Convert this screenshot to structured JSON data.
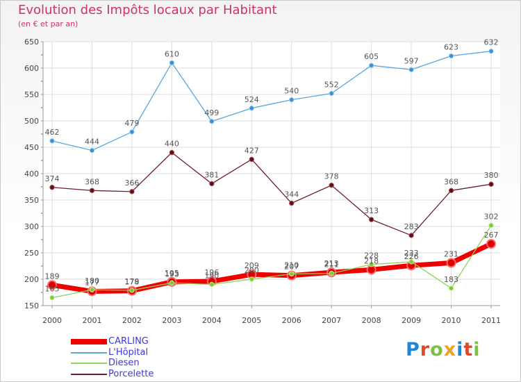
{
  "title": "Evolution des Impôts locaux par Habitant",
  "subtitle": "(en € et par an)",
  "logo": {
    "text": "Proxiti",
    "letters": [
      {
        "char": "P",
        "color": "#1e88d8"
      },
      {
        "char": "r",
        "color": "#e0492f"
      },
      {
        "char": "o",
        "color": "#7cc242"
      },
      {
        "char": "x",
        "color": "#f0a020"
      },
      {
        "char": "i",
        "color": "#1e88d8"
      },
      {
        "char": "t",
        "color": "#e0492f"
      },
      {
        "char": "i",
        "color": "#7cc242"
      }
    ]
  },
  "chart_data": {
    "type": "line",
    "title": "Evolution des Impôts locaux par Habitant",
    "subtitle": "(en € et par an)",
    "x": [
      "2000",
      "2001",
      "2002",
      "2003",
      "2004",
      "2005",
      "2006",
      "2007",
      "2008",
      "2009",
      "2010",
      "2011"
    ],
    "ylim": [
      150,
      650
    ],
    "yticks": [
      150,
      200,
      250,
      300,
      350,
      400,
      450,
      500,
      550,
      600,
      650
    ],
    "grid": true,
    "legend_position": "bottom-left",
    "series": [
      {
        "name": "CARLING",
        "color": "#ee0000",
        "values": [
          189,
          177,
          178,
          195,
          196,
          209,
          207,
          213,
          218,
          226,
          231,
          267
        ],
        "labels": [
          "189",
          "177",
          "178",
          "195",
          "196",
          "209",
          "207",
          "213",
          "218",
          "226",
          "231",
          "267"
        ]
      },
      {
        "name": "L'Hôpital",
        "color": "#5aa6d8",
        "values": [
          462,
          444,
          479,
          610,
          499,
          524,
          540,
          552,
          605,
          597,
          623,
          632
        ],
        "labels": [
          "462",
          "444",
          "479",
          "610",
          "499",
          "524",
          "540",
          "552",
          "605",
          "597",
          "623",
          "632"
        ]
      },
      {
        "name": "Diesen",
        "color": "#8fd35a",
        "values": [
          165,
          180,
          179,
          193,
          190,
          200,
          210,
          211,
          228,
          233,
          183,
          302
        ],
        "labels": [
          "165",
          "180",
          "179",
          "193",
          "190",
          "200",
          "210",
          "211",
          "228",
          "233",
          "183",
          "302"
        ]
      },
      {
        "name": "Porcelette",
        "color": "#6b1f28",
        "values": [
          374,
          368,
          366,
          440,
          381,
          427,
          344,
          378,
          313,
          283,
          368,
          380
        ],
        "labels": [
          "374",
          "368",
          "366",
          "440",
          "381",
          "427",
          "344",
          "378",
          "313",
          "283",
          "368",
          "380"
        ]
      }
    ]
  }
}
